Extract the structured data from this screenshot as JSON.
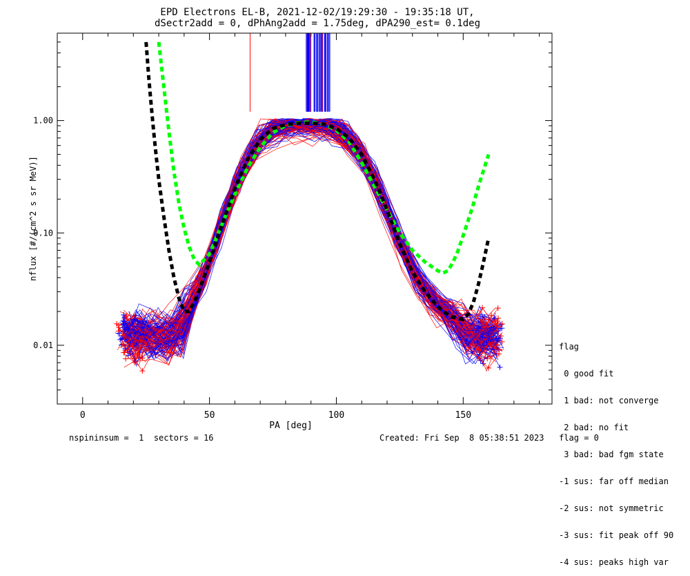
{
  "title_line1": "EPD Electrons EL-B, 2021-12-02/19:29:30 - 19:35:18 UT,",
  "title_line2": "dSectr2add = 0, dPhAng2add = 1.75deg, dPA290_est=    0.1deg",
  "footer": {
    "left": "nspininsum =  1  sectors = 16",
    "right": "Created: Fri Sep  8 05:38:51 2023   flag = 0"
  },
  "legend": {
    "title": "flag",
    "items": [
      " 0 good fit",
      " 1 bad: not converge",
      " 2 bad: no fit",
      " 3 bad: bad fgm state",
      "-1 sus: far off median",
      "-2 sus: not symmetric",
      "-3 sus: fit peak off 90",
      "-4 sus: peaks high var"
    ]
  },
  "colors": {
    "blue": "#0000ff",
    "red": "#ff0000",
    "green": "#00ff00",
    "black": "#000000"
  },
  "chart_data": {
    "type": "line",
    "xlabel": "PA [deg]",
    "ylabel": "nflux [#/(cm^2 s sr MeV)]",
    "xlim": [
      -10,
      185
    ],
    "ylim": [
      0.003,
      6.0
    ],
    "yscale": "log",
    "x_ticks": [
      0,
      50,
      100,
      150
    ],
    "x_tick_labels": [
      "0",
      "50",
      "100",
      "150"
    ],
    "y_ticks": [
      0.01,
      0.1,
      1.0
    ],
    "y_tick_labels": [
      "0.01",
      "0.10",
      "1.00"
    ],
    "series": [
      {
        "style": "dashed-thick",
        "color": "#00ff00",
        "x": [
          30,
          32,
          34,
          36,
          38,
          40,
          42,
          44,
          46,
          50,
          55,
          60,
          65,
          70,
          75,
          80,
          85,
          90,
          95,
          100,
          105,
          110,
          115,
          120,
          125,
          130,
          135,
          140,
          142,
          144,
          146,
          148,
          150,
          152,
          154,
          156,
          158,
          160
        ],
        "y": [
          5.0,
          2.0,
          0.8,
          0.35,
          0.18,
          0.11,
          0.075,
          0.058,
          0.052,
          0.065,
          0.12,
          0.22,
          0.38,
          0.58,
          0.78,
          0.9,
          0.96,
          0.97,
          0.93,
          0.82,
          0.65,
          0.42,
          0.26,
          0.16,
          0.1,
          0.07,
          0.055,
          0.046,
          0.044,
          0.046,
          0.055,
          0.07,
          0.095,
          0.13,
          0.18,
          0.26,
          0.36,
          0.5
        ]
      },
      {
        "style": "dashed-thick",
        "color": "#000000",
        "x": [
          25,
          26,
          27,
          28,
          29,
          30,
          32,
          34,
          36,
          38,
          40,
          42,
          45,
          50,
          55,
          60,
          65,
          70,
          75,
          80,
          85,
          90,
          95,
          100,
          105,
          110,
          115,
          120,
          125,
          130,
          135,
          140,
          145,
          150,
          152,
          154,
          156,
          158,
          160
        ],
        "y": [
          5.0,
          2.5,
          1.4,
          0.8,
          0.48,
          0.3,
          0.14,
          0.07,
          0.04,
          0.026,
          0.02,
          0.02,
          0.027,
          0.055,
          0.12,
          0.25,
          0.45,
          0.68,
          0.85,
          0.92,
          0.95,
          0.95,
          0.93,
          0.85,
          0.7,
          0.5,
          0.3,
          0.16,
          0.08,
          0.045,
          0.03,
          0.022,
          0.018,
          0.017,
          0.019,
          0.024,
          0.035,
          0.055,
          0.09
        ]
      }
    ]
  }
}
